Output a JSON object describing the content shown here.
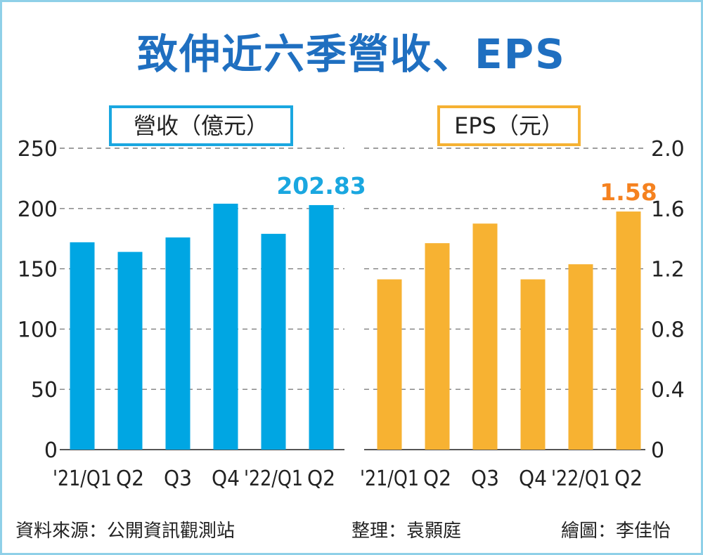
{
  "title": "致伸近六季營收、EPS",
  "footer": {
    "source": "資料來源：公開資訊觀測站",
    "editor": "整理：袁顥庭",
    "artist": "繪圖：李佳怡"
  },
  "chart_data": [
    {
      "type": "bar",
      "legend": "營收（億元）",
      "categories": [
        "'21/Q1",
        "Q2",
        "Q3",
        "Q4",
        "'22/Q1",
        "Q2"
      ],
      "values": [
        172,
        164,
        176,
        204,
        179,
        202.83
      ],
      "value_labels": [
        "",
        "",
        "",
        "",
        "",
        "202.83"
      ],
      "yticks": [
        "0",
        "50",
        "100",
        "150",
        "200",
        "250"
      ],
      "ylim": [
        0,
        250
      ],
      "grid": true,
      "axis_side": "left",
      "color": "#00a6e3"
    },
    {
      "type": "bar",
      "legend": "EPS（元）",
      "categories": [
        "'21/Q1",
        "Q2",
        "Q3",
        "Q4",
        "'22/Q1",
        "Q2"
      ],
      "values": [
        1.13,
        1.37,
        1.5,
        1.13,
        1.23,
        1.58
      ],
      "value_labels": [
        "",
        "",
        "",
        "",
        "",
        "1.58"
      ],
      "yticks": [
        "0",
        "0.4",
        "0.8",
        "1.2",
        "1.6",
        "2.0"
      ],
      "ylim": [
        0,
        2.0
      ],
      "grid": true,
      "axis_side": "right",
      "color": "#f7b232"
    }
  ],
  "colors": {
    "title": "#1f6fc0",
    "grid": "#7f7f7f",
    "label_left": "#1aa7e0",
    "label_right": "#f58220"
  }
}
